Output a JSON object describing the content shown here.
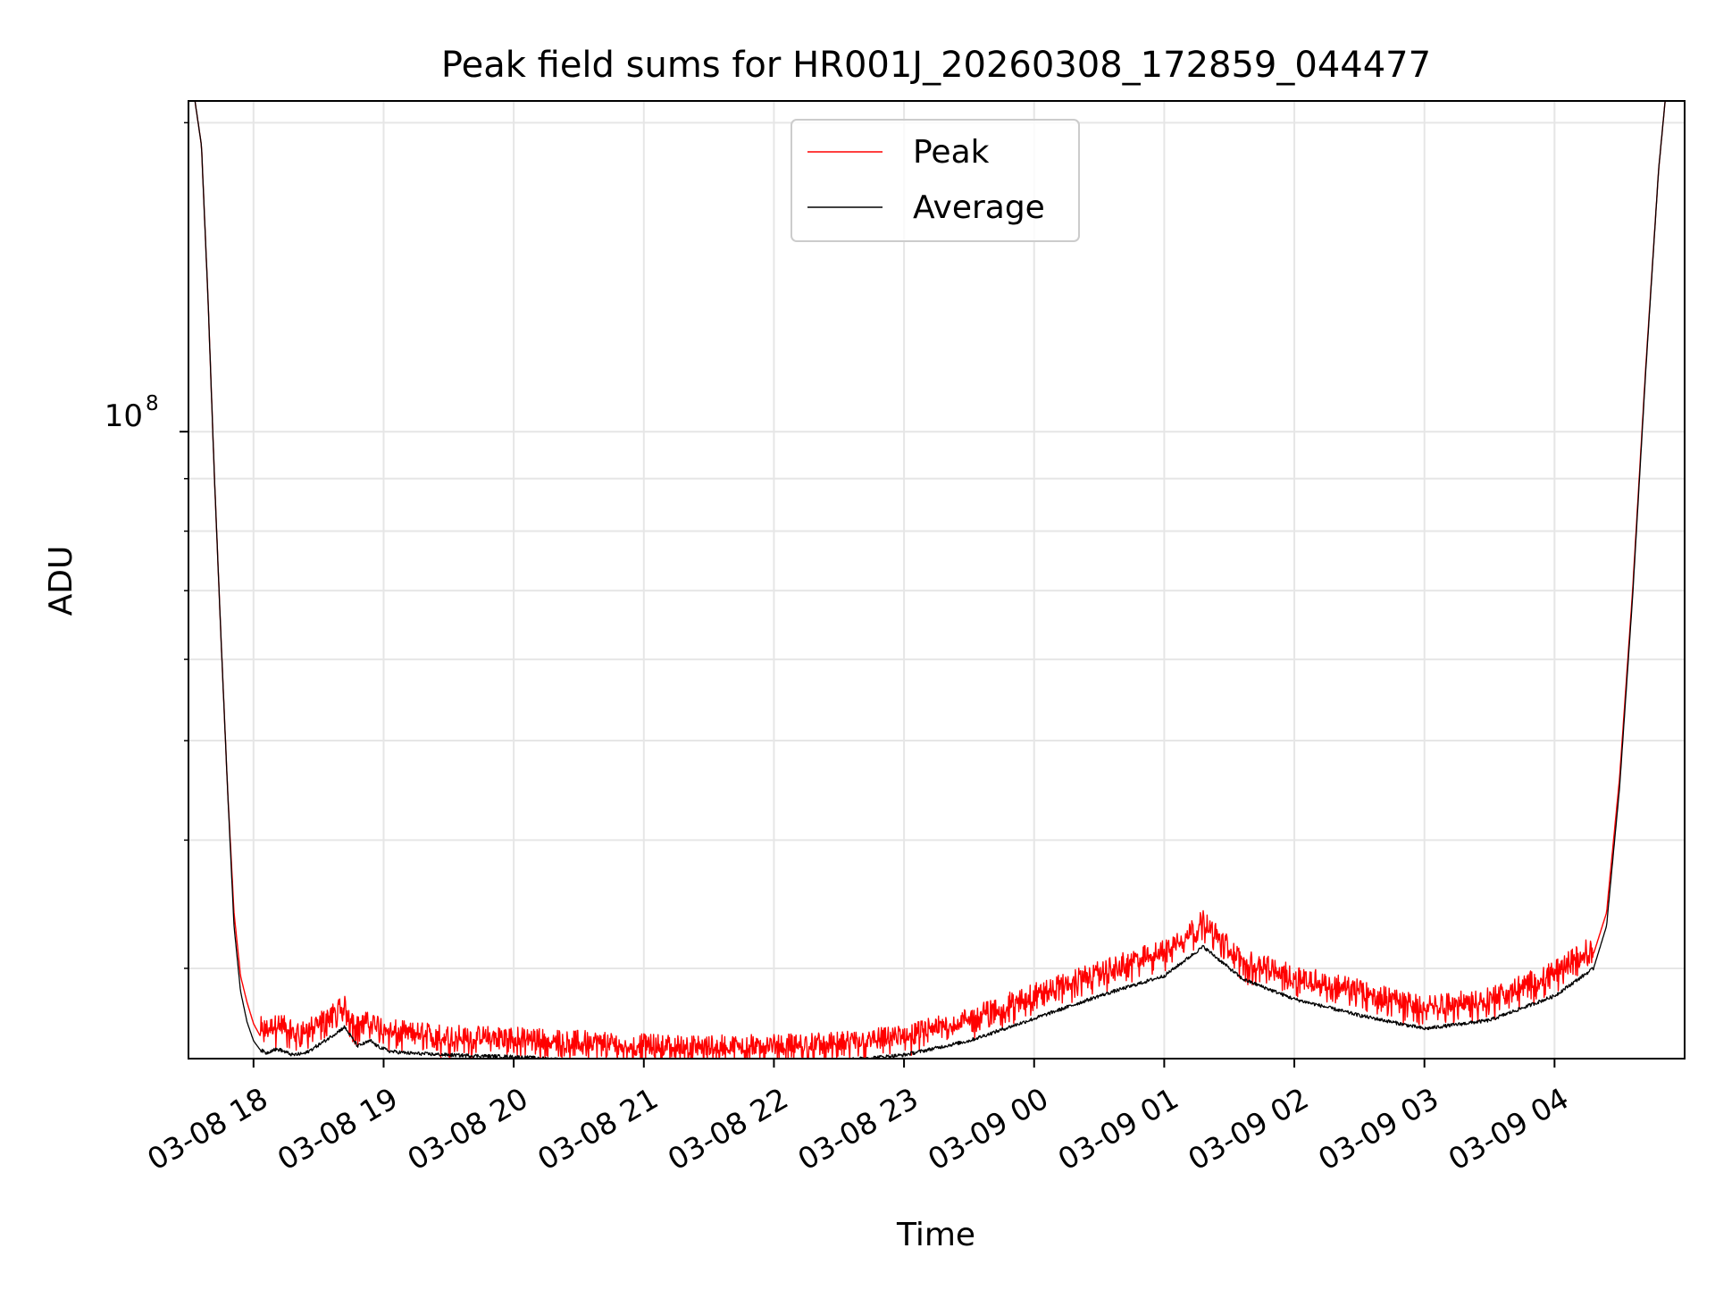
{
  "chart_data": {
    "type": "line",
    "title": "Peak field sums for HR001J_20260308_172859_044477",
    "xlabel": "Time",
    "ylabel": "ADU",
    "yscale": "log",
    "grid": true,
    "legend_location": "upper center",
    "xlim_hours": [
      -0.5,
      11.0
    ],
    "ylim": [
      24500000.0,
      210000000.0
    ],
    "x_tick_labels": [
      "03-08 18",
      "03-08 19",
      "03-08 20",
      "03-08 21",
      "03-08 22",
      "03-08 23",
      "03-09 00",
      "03-09 01",
      "03-09 02",
      "03-09 03",
      "03-09 04"
    ],
    "x_tick_hours": [
      0,
      1,
      2,
      3,
      4,
      5,
      6,
      7,
      8,
      9,
      10
    ],
    "y_major_tick_label_base": "10",
    "y_major_tick_label_exp": "8",
    "y_major_tick_value": 100000000.0,
    "series": [
      {
        "name": "Peak",
        "color": "#ff0000",
        "noisy": true,
        "x_hours": [
          -0.45,
          -0.4,
          -0.35,
          -0.3,
          -0.25,
          -0.2,
          -0.15,
          -0.1,
          -0.05,
          0.0,
          0.05,
          0.1,
          0.15,
          0.2,
          0.3,
          0.4,
          0.55,
          0.7,
          0.8,
          0.9,
          0.95,
          1.05,
          1.2,
          1.5,
          2.0,
          2.5,
          3.0,
          3.5,
          4.0,
          4.5,
          5.0,
          5.5,
          6.0,
          6.5,
          7.0,
          7.3,
          7.6,
          8.0,
          8.5,
          9.0,
          9.5,
          10.0,
          10.3,
          10.4,
          10.5,
          10.6,
          10.7,
          10.8,
          10.85
        ],
        "values": [
          210000000.0,
          190000000.0,
          135000000.0,
          90000000.0,
          63000000.0,
          45000000.0,
          34000000.0,
          29500000.0,
          27800000.0,
          26500000.0,
          25800000.0,
          25600000.0,
          25800000.0,
          26000000.0,
          25500000.0,
          25600000.0,
          26300000.0,
          27000000.0,
          25800000.0,
          26200000.0,
          26000000.0,
          25600000.0,
          25500000.0,
          25300000.0,
          25200000.0,
          25000000.0,
          24800000.0,
          24700000.0,
          24800000.0,
          24900000.0,
          25300000.0,
          26300000.0,
          27800000.0,
          29200000.0,
          30700000.0,
          32700000.0,
          30000000.0,
          29000000.0,
          28000000.0,
          27000000.0,
          27500000.0,
          29200000.0,
          31000000.0,
          34000000.0,
          46000000.0,
          70000000.0,
          115000000.0,
          180000000.0,
          210000000.0
        ]
      },
      {
        "name": "Average",
        "color": "#000000",
        "noisy": false,
        "x_hours": [
          -0.45,
          -0.4,
          -0.35,
          -0.3,
          -0.25,
          -0.2,
          -0.15,
          -0.1,
          -0.05,
          0.0,
          0.05,
          0.1,
          0.15,
          0.2,
          0.3,
          0.4,
          0.55,
          0.7,
          0.8,
          0.9,
          0.95,
          1.05,
          1.2,
          1.5,
          2.0,
          2.5,
          3.0,
          3.5,
          4.0,
          4.5,
          5.0,
          5.5,
          6.0,
          6.5,
          7.0,
          7.3,
          7.6,
          8.0,
          8.5,
          9.0,
          9.5,
          10.0,
          10.3,
          10.4,
          10.5,
          10.6,
          10.7,
          10.8,
          10.85
        ],
        "values": [
          210000000.0,
          190000000.0,
          135000000.0,
          90000000.0,
          63000000.0,
          45000000.0,
          33000000.0,
          28500000.0,
          26600000.0,
          25500000.0,
          25000000.0,
          24800000.0,
          25000000.0,
          25000000.0,
          24700000.0,
          24800000.0,
          25500000.0,
          26300000.0,
          25200000.0,
          25500000.0,
          25200000.0,
          24900000.0,
          24800000.0,
          24700000.0,
          24600000.0,
          24400000.0,
          24300000.0,
          24200000.0,
          24300000.0,
          24400000.0,
          24700000.0,
          25500000.0,
          26800000.0,
          28200000.0,
          29500000.0,
          31500000.0,
          29300000.0,
          28000000.0,
          27000000.0,
          26200000.0,
          26700000.0,
          28200000.0,
          30000000.0,
          33000000.0,
          45000000.0,
          69000000.0,
          114000000.0,
          180000000.0,
          210000000.0
        ]
      }
    ]
  }
}
